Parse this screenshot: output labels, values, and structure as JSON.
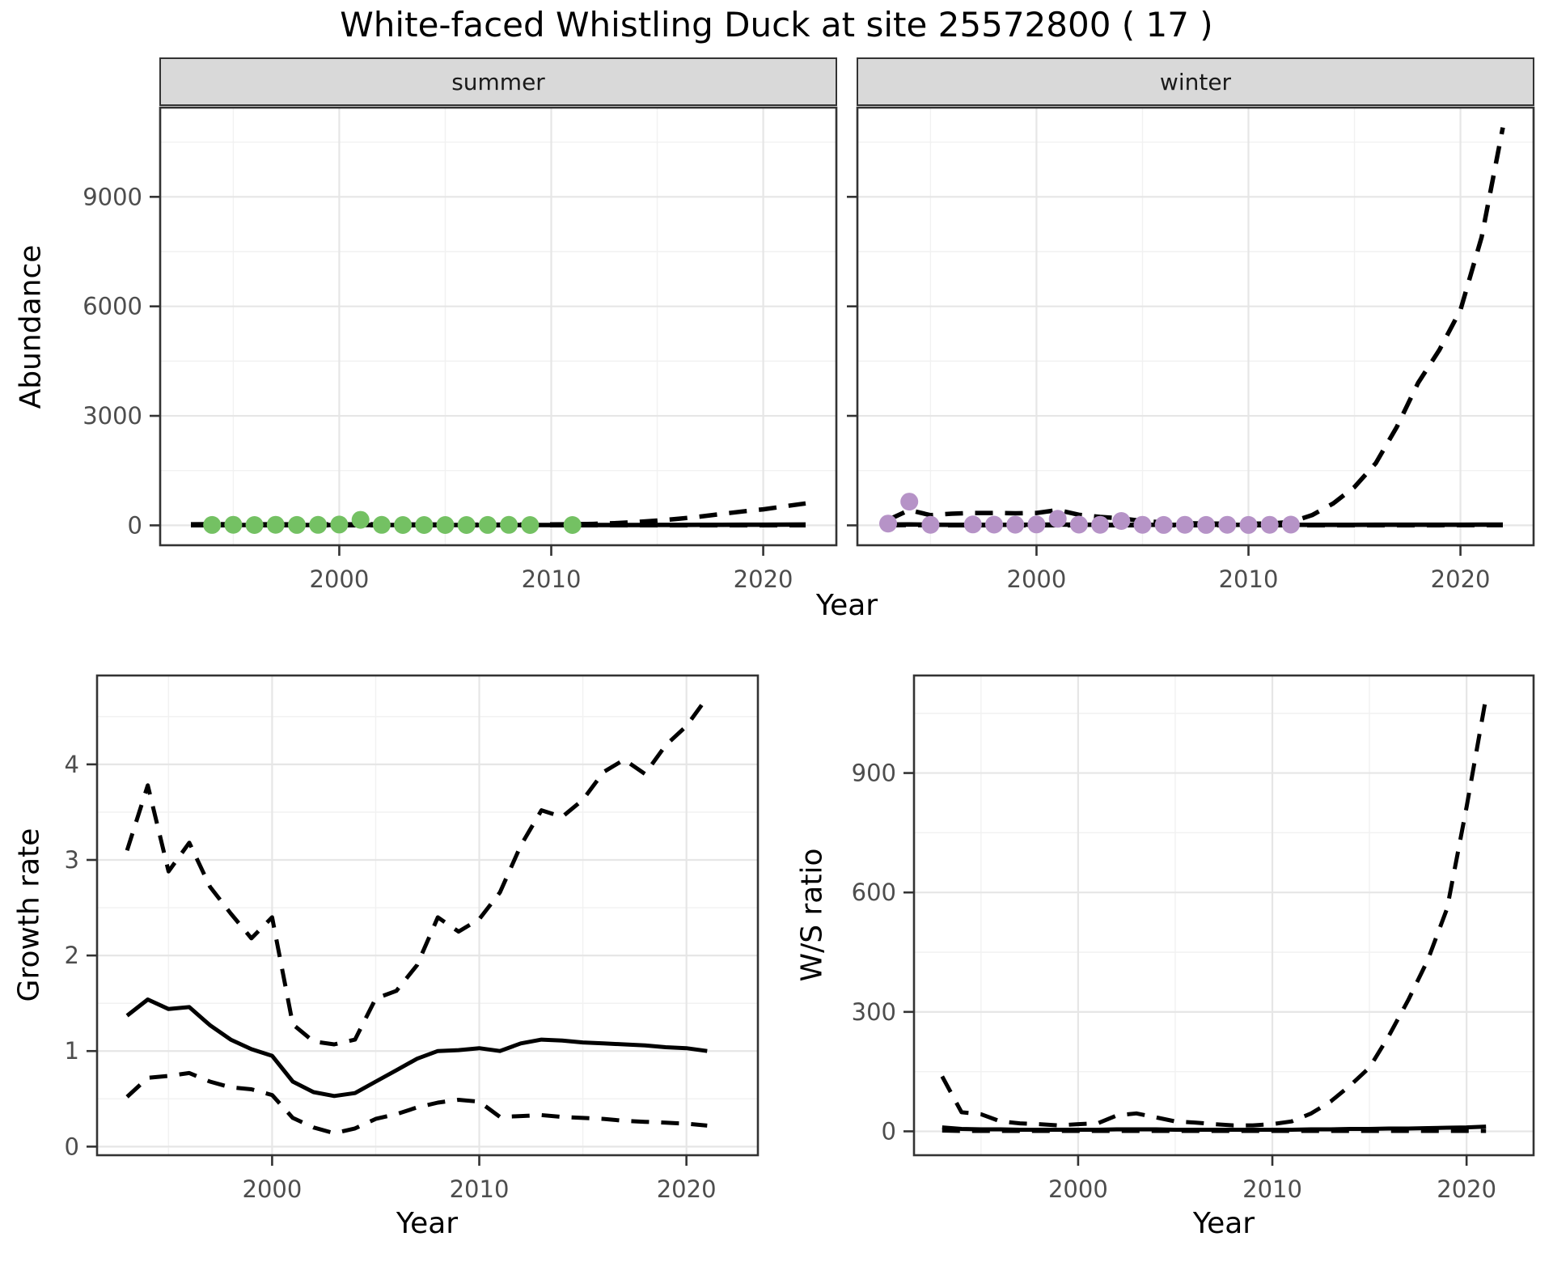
{
  "title": "White-faced Whistling Duck at site 25572800 ( 17 )",
  "colors": {
    "summer_points": "#74c163",
    "winter_points": "#b693c7",
    "line": "#000000",
    "panel_border": "#333333",
    "grid_major": "#e6e6e6",
    "grid_minor": "#f1f1f1",
    "tick_label": "#4d4d4d",
    "strip_bg": "#d9d9d9"
  },
  "chart_data": [
    {
      "id": "abundance_summer",
      "type": "line",
      "facet": "summer",
      "xlabel": "Year",
      "ylabel": "Abundance",
      "xlim": [
        1991.55,
        2023.45
      ],
      "ylim": [
        -545,
        11445
      ],
      "xticks": [
        2000,
        2010,
        2020
      ],
      "yticks": [
        0,
        3000,
        6000,
        9000
      ],
      "series": [
        {
          "name": "median-line",
          "type": "line",
          "style": "solid",
          "x": [
            1993,
            1994,
            1995,
            1996,
            1997,
            1998,
            1999,
            2000,
            2001,
            2002,
            2003,
            2004,
            2005,
            2006,
            2007,
            2008,
            2009,
            2010,
            2011,
            2012,
            2013,
            2014,
            2015,
            2016,
            2017,
            2018,
            2019,
            2020,
            2021,
            2022
          ],
          "y": [
            8,
            8,
            8,
            8,
            8,
            8,
            8,
            8,
            8,
            8,
            8,
            8,
            8,
            8,
            8,
            8,
            8,
            8,
            8,
            8,
            9,
            10,
            11,
            12,
            14,
            15,
            17,
            19,
            21,
            23
          ]
        },
        {
          "name": "upper-ci-line",
          "type": "line",
          "style": "dashed",
          "x": [
            1993,
            1994,
            1995,
            1996,
            1997,
            1998,
            1999,
            2000,
            2001,
            2002,
            2003,
            2004,
            2005,
            2006,
            2007,
            2008,
            2009,
            2010,
            2011,
            2012,
            2013,
            2014,
            2015,
            2016,
            2017,
            2018,
            2019,
            2020,
            2021,
            2022
          ],
          "y": [
            30,
            34,
            30,
            29,
            28,
            26,
            25,
            27,
            30,
            27,
            24,
            22,
            20,
            19,
            19,
            20,
            22,
            25,
            30,
            40,
            60,
            90,
            130,
            180,
            240,
            310,
            380,
            440,
            520,
            600
          ]
        },
        {
          "name": "lower-ci-line",
          "type": "line",
          "style": "dashed",
          "x": [
            1993,
            1994,
            1995,
            1996,
            1997,
            1998,
            1999,
            2000,
            2001,
            2002,
            2003,
            2004,
            2005,
            2006,
            2007,
            2008,
            2009,
            2010,
            2011,
            2012,
            2013,
            2014,
            2015,
            2016,
            2017,
            2018,
            2019,
            2020,
            2021,
            2022
          ],
          "y": [
            3,
            3,
            3,
            3,
            3,
            3,
            3,
            3,
            3,
            3,
            3,
            3,
            3,
            3,
            3,
            3,
            3,
            3,
            3,
            3,
            3,
            3,
            3,
            3,
            3,
            4,
            4,
            4,
            5,
            5
          ]
        },
        {
          "name": "observed-counts",
          "type": "scatter",
          "color": "#74c163",
          "x": [
            1994,
            1995,
            1996,
            1997,
            1998,
            1999,
            2000,
            2001,
            2002,
            2003,
            2004,
            2005,
            2006,
            2007,
            2008,
            2009,
            2011
          ],
          "y": [
            12,
            15,
            10,
            16,
            12,
            14,
            22,
            150,
            14,
            10,
            8,
            10,
            8,
            12,
            14,
            10,
            8
          ]
        }
      ]
    },
    {
      "id": "abundance_winter",
      "type": "line",
      "facet": "winter",
      "xlabel": "Year",
      "ylabel": "Abundance",
      "xlim": [
        1991.55,
        2023.45
      ],
      "ylim": [
        -545,
        11445
      ],
      "xticks": [
        2000,
        2010,
        2020
      ],
      "yticks": [
        0,
        3000,
        6000,
        9000
      ],
      "series": [
        {
          "name": "median-line",
          "type": "line",
          "style": "solid",
          "x": [
            1993,
            1994,
            1995,
            1996,
            1997,
            1998,
            1999,
            2000,
            2001,
            2002,
            2003,
            2004,
            2005,
            2006,
            2007,
            2008,
            2009,
            2010,
            2011,
            2012,
            2013,
            2014,
            2015,
            2016,
            2017,
            2018,
            2019,
            2020,
            2021,
            2022
          ],
          "y": [
            22,
            26,
            18,
            16,
            15,
            15,
            15,
            18,
            22,
            18,
            16,
            15,
            14,
            14,
            14,
            14,
            14,
            14,
            15,
            15,
            15,
            16,
            16,
            17,
            17,
            18,
            18,
            19,
            20,
            21
          ]
        },
        {
          "name": "upper-ci-line",
          "type": "line",
          "style": "dashed",
          "x": [
            1993,
            1994,
            1995,
            1996,
            1997,
            1998,
            1999,
            2000,
            2001,
            2002,
            2003,
            2004,
            2005,
            2006,
            2007,
            2008,
            2009,
            2010,
            2011,
            2012,
            2013,
            2014,
            2015,
            2016,
            2017,
            2018,
            2019,
            2020,
            2021,
            2022
          ],
          "y": [
            150,
            420,
            280,
            320,
            340,
            340,
            330,
            340,
            420,
            290,
            230,
            190,
            120,
            80,
            60,
            50,
            45,
            45,
            50,
            90,
            280,
            600,
            1050,
            1700,
            2700,
            3900,
            4800,
            5900,
            7900,
            10900
          ]
        },
        {
          "name": "lower-ci-line",
          "type": "line",
          "style": "dashed",
          "x": [
            1993,
            1994,
            1995,
            1996,
            1997,
            1998,
            1999,
            2000,
            2001,
            2002,
            2003,
            2004,
            2005,
            2006,
            2007,
            2008,
            2009,
            2010,
            2011,
            2012,
            2013,
            2014,
            2015,
            2016,
            2017,
            2018,
            2019,
            2020,
            2021,
            2022
          ],
          "y": [
            5,
            8,
            4,
            3,
            3,
            3,
            3,
            3,
            4,
            3,
            3,
            3,
            3,
            3,
            3,
            3,
            3,
            3,
            3,
            3,
            3,
            3,
            4,
            4,
            4,
            5,
            5,
            6,
            6,
            7
          ]
        },
        {
          "name": "observed-counts",
          "type": "scatter",
          "color": "#b693c7",
          "x": [
            1993,
            1994,
            1995,
            1997,
            1998,
            1999,
            2000,
            2001,
            2002,
            2003,
            2004,
            2005,
            2006,
            2007,
            2008,
            2009,
            2010,
            2011,
            2012
          ],
          "y": [
            50,
            650,
            15,
            25,
            20,
            18,
            25,
            180,
            20,
            15,
            120,
            15,
            12,
            15,
            12,
            15,
            12,
            15,
            20
          ]
        }
      ]
    },
    {
      "id": "growth_rate",
      "type": "line",
      "facet": null,
      "xlabel": "Year",
      "ylabel": "Growth rate",
      "xlim": [
        1991.55,
        2023.45
      ],
      "ylim": [
        -0.09,
        4.93
      ],
      "xticks": [
        2000,
        2010,
        2020
      ],
      "yticks": [
        0,
        1,
        2,
        3,
        4
      ],
      "series": [
        {
          "name": "median-line",
          "type": "line",
          "style": "solid",
          "x": [
            1993,
            1994,
            1995,
            1996,
            1997,
            1998,
            1999,
            2000,
            2001,
            2002,
            2003,
            2004,
            2005,
            2006,
            2007,
            2008,
            2009,
            2010,
            2011,
            2012,
            2013,
            2014,
            2015,
            2016,
            2017,
            2018,
            2019,
            2020,
            2021
          ],
          "y": [
            1.37,
            1.54,
            1.44,
            1.46,
            1.27,
            1.12,
            1.02,
            0.95,
            0.68,
            0.57,
            0.53,
            0.56,
            0.68,
            0.8,
            0.92,
            1.0,
            1.01,
            1.03,
            1.0,
            1.08,
            1.12,
            1.11,
            1.09,
            1.08,
            1.07,
            1.06,
            1.04,
            1.03,
            1.0
          ]
        },
        {
          "name": "upper-ci-line",
          "type": "line",
          "style": "dashed",
          "x": [
            1993,
            1994,
            1995,
            1996,
            1997,
            1998,
            1999,
            2000,
            2001,
            2002,
            2003,
            2004,
            2005,
            2006,
            2007,
            2008,
            2009,
            2010,
            2011,
            2012,
            2013,
            2014,
            2015,
            2016,
            2017,
            2018,
            2019,
            2020,
            2021
          ],
          "y": [
            3.1,
            3.78,
            2.88,
            3.18,
            2.72,
            2.44,
            2.18,
            2.4,
            1.28,
            1.1,
            1.07,
            1.12,
            1.55,
            1.63,
            1.9,
            2.4,
            2.25,
            2.38,
            2.66,
            3.15,
            3.52,
            3.45,
            3.63,
            3.92,
            4.05,
            3.9,
            4.2,
            4.4,
            4.7
          ]
        },
        {
          "name": "lower-ci-line",
          "type": "line",
          "style": "dashed",
          "x": [
            1993,
            1994,
            1995,
            1996,
            1997,
            1998,
            1999,
            2000,
            2001,
            2002,
            2003,
            2004,
            2005,
            2006,
            2007,
            2008,
            2009,
            2010,
            2011,
            2012,
            2013,
            2014,
            2015,
            2016,
            2017,
            2018,
            2019,
            2020,
            2021
          ],
          "y": [
            0.52,
            0.72,
            0.74,
            0.77,
            0.68,
            0.62,
            0.6,
            0.54,
            0.3,
            0.2,
            0.14,
            0.19,
            0.29,
            0.34,
            0.41,
            0.46,
            0.49,
            0.47,
            0.31,
            0.32,
            0.33,
            0.31,
            0.3,
            0.29,
            0.27,
            0.26,
            0.25,
            0.24,
            0.22
          ]
        }
      ]
    },
    {
      "id": "ws_ratio",
      "type": "line",
      "facet": null,
      "xlabel": "Year",
      "ylabel": "W/S ratio",
      "xlim": [
        1991.55,
        2023.45
      ],
      "ylim": [
        -60,
        1145
      ],
      "xticks": [
        2000,
        2010,
        2020
      ],
      "yticks": [
        0,
        300,
        600,
        900
      ],
      "series": [
        {
          "name": "median-line",
          "type": "line",
          "style": "solid",
          "x": [
            1993,
            1994,
            1995,
            1996,
            1997,
            1998,
            1999,
            2000,
            2001,
            2002,
            2003,
            2004,
            2005,
            2006,
            2007,
            2008,
            2009,
            2010,
            2011,
            2012,
            2013,
            2014,
            2015,
            2016,
            2017,
            2018,
            2019,
            2020,
            2021
          ],
          "y": [
            10,
            6,
            5,
            5,
            4,
            4,
            4,
            4,
            4,
            5,
            5,
            5,
            4,
            4,
            4,
            4,
            4,
            4,
            4,
            5,
            5,
            6,
            6,
            7,
            7,
            8,
            9,
            10,
            12
          ]
        },
        {
          "name": "upper-ci-line",
          "type": "line",
          "style": "dashed",
          "x": [
            1993,
            1994,
            1995,
            1996,
            1997,
            1998,
            1999,
            2000,
            2001,
            2002,
            2003,
            2004,
            2005,
            2006,
            2007,
            2008,
            2009,
            2010,
            2011,
            2012,
            2013,
            2014,
            2015,
            2016,
            2017,
            2018,
            2019,
            2020,
            2021
          ],
          "y": [
            138,
            48,
            43,
            25,
            20,
            18,
            15,
            18,
            20,
            40,
            45,
            35,
            25,
            22,
            18,
            15,
            15,
            18,
            25,
            45,
            75,
            115,
            160,
            240,
            330,
            430,
            560,
            815,
            1090
          ]
        },
        {
          "name": "lower-ci-line",
          "type": "line",
          "style": "dashed",
          "x": [
            1993,
            1994,
            1995,
            1996,
            1997,
            1998,
            1999,
            2000,
            2001,
            2002,
            2003,
            2004,
            2005,
            2006,
            2007,
            2008,
            2009,
            2010,
            2011,
            2012,
            2013,
            2014,
            2015,
            2016,
            2017,
            2018,
            2019,
            2020,
            2021
          ],
          "y": [
            2,
            1,
            1,
            1,
            1,
            1,
            1,
            1,
            1,
            1,
            1,
            1,
            1,
            1,
            1,
            1,
            1,
            1,
            1,
            1,
            1,
            1,
            1,
            1,
            1,
            1,
            1,
            1,
            1
          ]
        }
      ]
    }
  ]
}
